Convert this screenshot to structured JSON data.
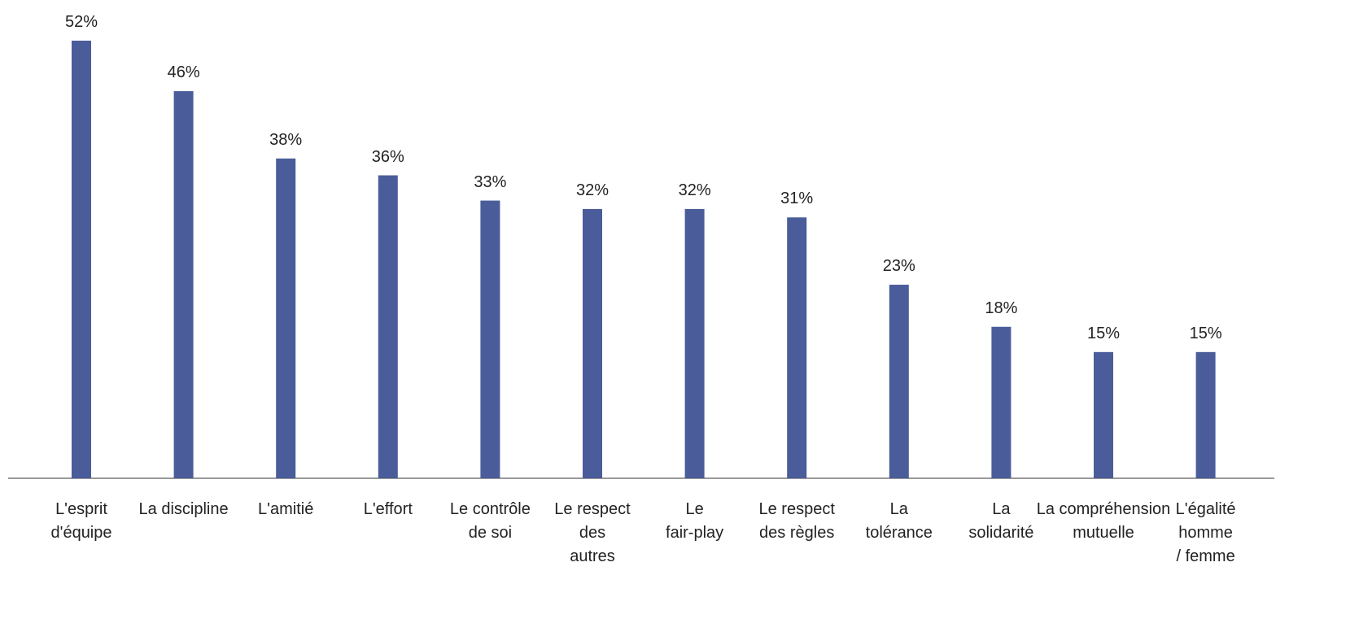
{
  "chart_data": {
    "type": "bar",
    "categories": [
      "L'esprit\nd'équipe",
      "La discipline",
      "L'amitié",
      "L'effort",
      "Le contrôle\nde soi",
      "Le respect\ndes\nautres",
      "Le\nfair-play",
      "Le respect\ndes règles",
      "La\ntolérance",
      "La\nsolidarité",
      "La compréhension\nmutuelle",
      "L'égalité\nhomme\n/ femme"
    ],
    "values": [
      52,
      46,
      38,
      36,
      33,
      32,
      32,
      31,
      23,
      18,
      15,
      15
    ],
    "value_labels": [
      "52%",
      "46%",
      "38%",
      "36%",
      "33%",
      "32%",
      "32%",
      "31%",
      "23%",
      "18%",
      "15%",
      "15%"
    ],
    "color": "#4a5c9a"
  }
}
